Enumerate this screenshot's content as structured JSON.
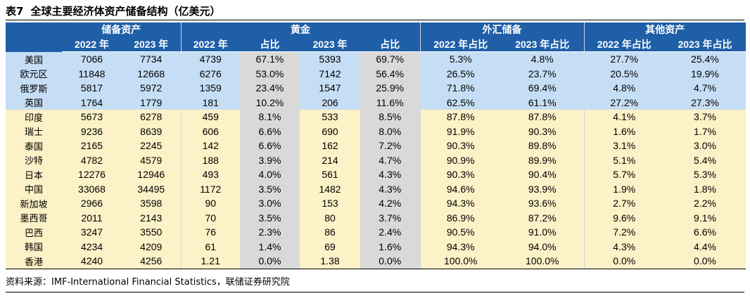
{
  "title": {
    "table_no": "表7",
    "text": "全球主要经济体资产储备结构（亿美元）"
  },
  "header": {
    "groups": [
      "储备资产",
      "黄金",
      "外汇储备",
      "其他资产"
    ],
    "subheaders": [
      "2022 年",
      "2023 年",
      "2022 年",
      "占比",
      "2023 年",
      "占比",
      "2022 年占比",
      "2023 年占比",
      "2022 年占比",
      "2023 年占比"
    ]
  },
  "rows": [
    {
      "country": "美国",
      "values": [
        "7066",
        "7734",
        "4739",
        "67.1%",
        "5393",
        "69.7%",
        "5.3%",
        "4.8%",
        "27.7%",
        "25.4%"
      ]
    },
    {
      "country": "欧元区",
      "values": [
        "11848",
        "12668",
        "6276",
        "53.0%",
        "7142",
        "56.4%",
        "26.5%",
        "23.7%",
        "20.5%",
        "19.9%"
      ]
    },
    {
      "country": "俄罗斯",
      "values": [
        "5817",
        "5972",
        "1359",
        "23.4%",
        "1547",
        "25.9%",
        "71.8%",
        "69.4%",
        "4.8%",
        "4.7%"
      ]
    },
    {
      "country": "英国",
      "values": [
        "1764",
        "1779",
        "181",
        "10.2%",
        "206",
        "11.6%",
        "62.5%",
        "61.1%",
        "27.2%",
        "27.3%"
      ]
    },
    {
      "country": "印度",
      "values": [
        "5673",
        "6278",
        "459",
        "8.1%",
        "533",
        "8.5%",
        "87.8%",
        "87.8%",
        "4.1%",
        "3.7%"
      ]
    },
    {
      "country": "瑞士",
      "values": [
        "9236",
        "8639",
        "606",
        "6.6%",
        "690",
        "8.0%",
        "91.9%",
        "90.3%",
        "1.6%",
        "1.7%"
      ]
    },
    {
      "country": "泰国",
      "values": [
        "2165",
        "2245",
        "142",
        "6.6%",
        "162",
        "7.2%",
        "90.3%",
        "89.8%",
        "3.1%",
        "3.0%"
      ]
    },
    {
      "country": "沙特",
      "values": [
        "4782",
        "4579",
        "188",
        "3.9%",
        "214",
        "4.7%",
        "90.9%",
        "89.9%",
        "5.1%",
        "5.4%"
      ]
    },
    {
      "country": "日本",
      "values": [
        "12276",
        "12946",
        "493",
        "4.0%",
        "561",
        "4.3%",
        "90.3%",
        "90.4%",
        "5.7%",
        "5.3%"
      ]
    },
    {
      "country": "中国",
      "values": [
        "33068",
        "34495",
        "1172",
        "3.5%",
        "1482",
        "4.3%",
        "94.6%",
        "93.9%",
        "1.9%",
        "1.8%"
      ]
    },
    {
      "country": "新加坡",
      "values": [
        "2966",
        "3598",
        "90",
        "3.0%",
        "153",
        "4.2%",
        "94.3%",
        "93.6%",
        "2.7%",
        "2.2%"
      ]
    },
    {
      "country": "墨西哥",
      "values": [
        "2011",
        "2143",
        "70",
        "3.5%",
        "80",
        "3.7%",
        "86.9%",
        "87.2%",
        "9.6%",
        "9.1%"
      ]
    },
    {
      "country": "巴西",
      "values": [
        "3247",
        "3550",
        "76",
        "2.3%",
        "86",
        "2.4%",
        "90.5%",
        "91.0%",
        "7.2%",
        "6.6%"
      ]
    },
    {
      "country": "韩国",
      "values": [
        "4234",
        "4209",
        "61",
        "1.4%",
        "69",
        "1.6%",
        "94.3%",
        "94.0%",
        "4.3%",
        "4.4%"
      ]
    },
    {
      "country": "香港",
      "values": [
        "4240",
        "4256",
        "1.21",
        "0.0%",
        "1.38",
        "0.0%",
        "100.0%",
        "100.0%",
        "0.0%",
        "0.0%"
      ]
    }
  ],
  "colors": {
    "header_bg": "#1f5fa8",
    "developed_rows_bg": "#c6def5",
    "emerging_rows_bg": "#fdf1c7",
    "gold_share_bg": "#d9d9d9"
  },
  "source": "资料来源：IMF-International Financial Statistics，联储证券研究院"
}
